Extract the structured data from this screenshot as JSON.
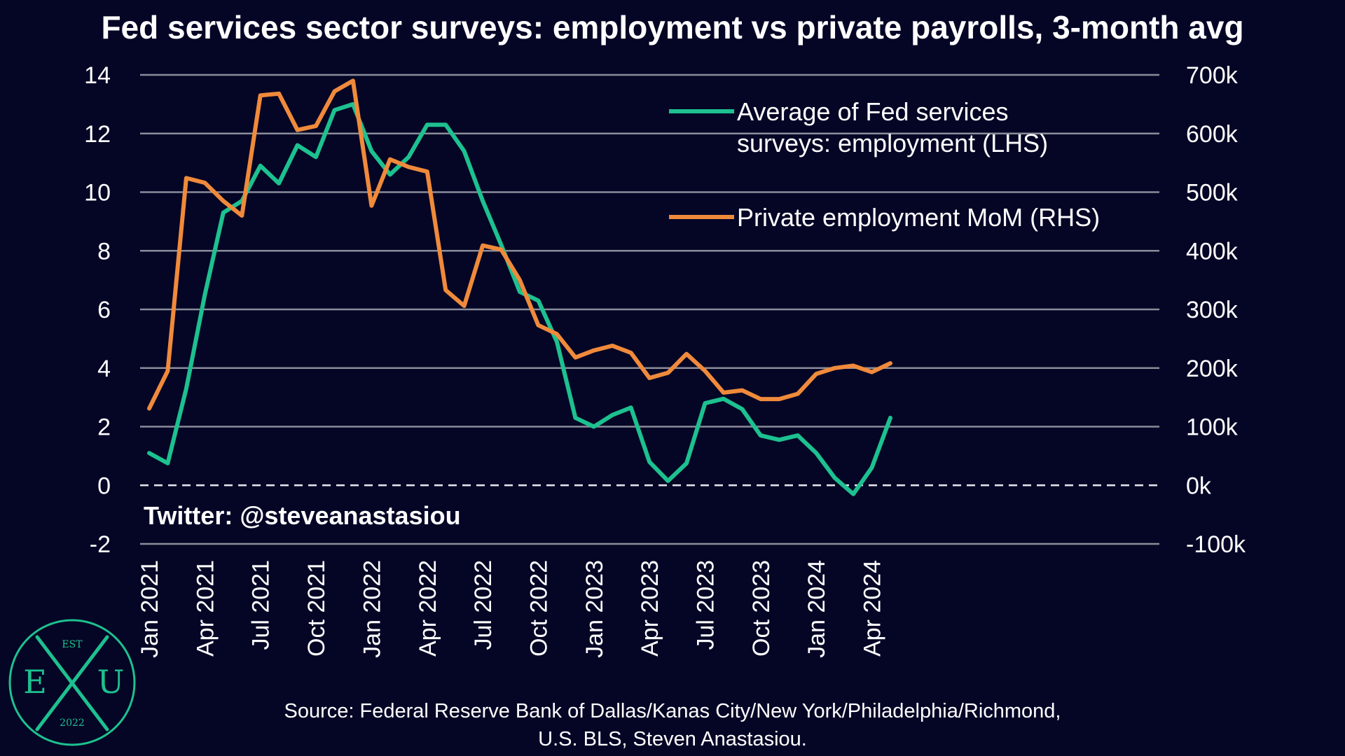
{
  "colors": {
    "background": "#050626",
    "grid": "#8a8c99",
    "text": "#ffffff",
    "green": "#1dc18f",
    "orange": "#f08a3b"
  },
  "watermark": "Twitter: @steveanastasiou",
  "source": {
    "line1": "Source: Federal Reserve Bank of Dallas/Kanas City/New York/Philadelphia/Richmond,",
    "line2": "U.S. BLS, Steven Anastasiou."
  },
  "logo": {
    "top": "EST",
    "left": "E",
    "right": "U",
    "year": "2022",
    "icon": "exu-logo-icon"
  },
  "chart_data": {
    "type": "line",
    "title": "Fed services sector surveys: employment vs private payrolls, 3-month avg",
    "x_tick_labels": [
      "Jan 2021",
      "Apr 2021",
      "Jul 2021",
      "Oct 2021",
      "Jan 2022",
      "Apr 2022",
      "Jul 2022",
      "Oct 2022",
      "Jan 2023",
      "Apr 2023",
      "Jul 2023",
      "Oct 2023",
      "Jan 2024",
      "Apr 2024"
    ],
    "x_tick_index": [
      0,
      3,
      6,
      9,
      12,
      15,
      18,
      21,
      24,
      27,
      30,
      33,
      36,
      39
    ],
    "ylim_left": [
      -2,
      14
    ],
    "yticks_left": [
      "14",
      "12",
      "10",
      "8",
      "6",
      "4",
      "2",
      "0",
      "-2"
    ],
    "ylim_right": [
      -100,
      700
    ],
    "yticks_right": [
      "700k",
      "600k",
      "500k",
      "400k",
      "300k",
      "200k",
      "100k",
      "0k",
      "-100k"
    ],
    "grid": true,
    "legend_position": "top-right",
    "series": [
      {
        "name": "Average of Fed services surveys: employment (LHS)",
        "legend_line1": "Average of Fed services",
        "legend_line2": "surveys: employment (LHS)",
        "axis": "left",
        "values": [
          1.1,
          0.75,
          3.3,
          6.5,
          9.3,
          9.7,
          10.9,
          10.3,
          11.6,
          11.2,
          12.8,
          13.0,
          11.4,
          10.6,
          11.2,
          12.3,
          12.3,
          11.4,
          9.7,
          8.2,
          6.6,
          6.3,
          4.9,
          2.3,
          2.0,
          2.4,
          2.65,
          0.8,
          0.15,
          0.75,
          2.8,
          2.95,
          2.6,
          1.7,
          1.55,
          1.7,
          1.1,
          0.25,
          -0.3,
          0.6,
          2.3
        ]
      },
      {
        "name": "Private employment MoM (RHS)",
        "axis": "right",
        "values": [
          131,
          195,
          524,
          516,
          485,
          460,
          665,
          668,
          606,
          613,
          672,
          690,
          477,
          556,
          543,
          535,
          333,
          306,
          409,
          402,
          350,
          273,
          258,
          218,
          230,
          238,
          226,
          183,
          192,
          224,
          195,
          158,
          162,
          147,
          147,
          156,
          190,
          200,
          204,
          193,
          208
        ]
      }
    ]
  }
}
